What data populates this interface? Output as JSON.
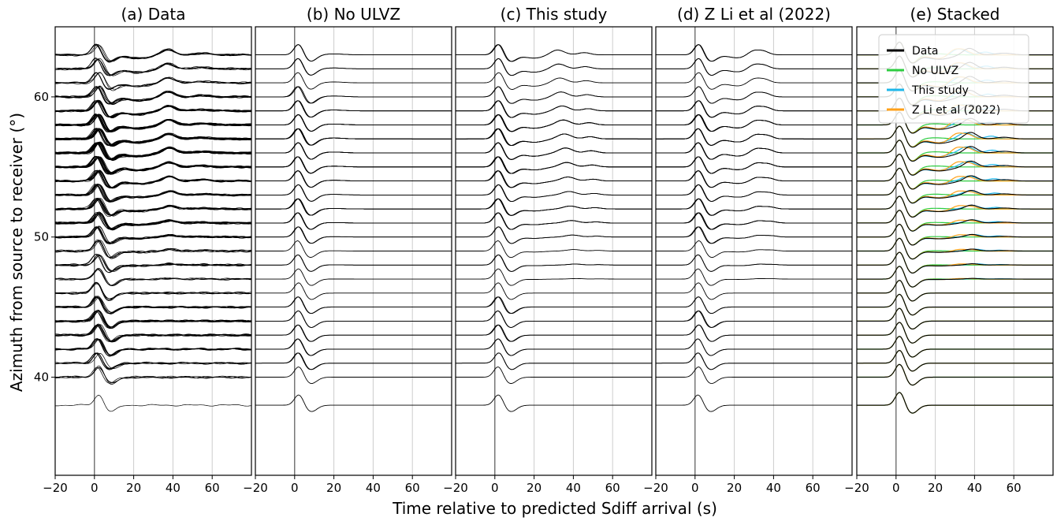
{
  "figure": {
    "xlabel": "Time relative to predicted Sdiff arrival (s)",
    "ylabel": "Azimuth from source to receiver (°)"
  },
  "chart_data": {
    "type": "line",
    "description_units": "x: seconds; y: azimuth in degrees",
    "xlim": [
      -20,
      80
    ],
    "ylim": [
      65,
      33
    ],
    "x_ticks": [
      -20,
      0,
      20,
      40,
      60
    ],
    "x_tick_labels": [
      "−20",
      "0",
      "20",
      "40",
      "60"
    ],
    "y_ticks": [
      40,
      50,
      60
    ],
    "y_tick_labels": [
      "40",
      "50",
      "60"
    ],
    "grid": "vertical at x ticks",
    "azimuths": [
      38,
      40,
      41,
      42,
      43,
      44,
      45,
      46,
      47,
      48,
      49,
      50,
      51,
      52,
      53,
      54,
      55,
      56,
      57,
      58,
      59,
      60,
      61,
      62,
      63
    ],
    "traces_per_azimuth": [
      1,
      4,
      6,
      7,
      8,
      9,
      7,
      5,
      4,
      6,
      5,
      8,
      12,
      10,
      9,
      12,
      16,
      20,
      22,
      16,
      12,
      9,
      5,
      6,
      6
    ],
    "panels": [
      {
        "id": "a",
        "title": "(a) Data",
        "kind": "data",
        "label": "Data"
      },
      {
        "id": "b",
        "title": "(b) No ULVZ",
        "kind": "synthetic",
        "model": "noulvz",
        "label": "No ULVZ"
      },
      {
        "id": "c",
        "title": "(c) This study",
        "kind": "synthetic",
        "model": "thisstudy",
        "label": "This study"
      },
      {
        "id": "d",
        "title": "(d) Z Li et al (2022)",
        "kind": "synthetic",
        "model": "zli",
        "label": "Z Li et al (2022)"
      },
      {
        "id": "e",
        "title": "(e) Stacked",
        "kind": "stacked"
      }
    ],
    "legend": {
      "placement": "top-right",
      "entries": [
        {
          "label": "Data",
          "color": "#000000"
        },
        {
          "label": "No ULVZ",
          "color": "#2ecc40"
        },
        {
          "label": "This study",
          "color": "#1eb7ea"
        },
        {
          "label": "Z Li et al (2022)",
          "color": "#ffa11a"
        }
      ]
    },
    "colors": {
      "data": "#000000",
      "noulvz": "#2ecc40",
      "thisstudy": "#1eb7ea",
      "zli": "#ffa11a",
      "grid": "#cccccc"
    }
  }
}
